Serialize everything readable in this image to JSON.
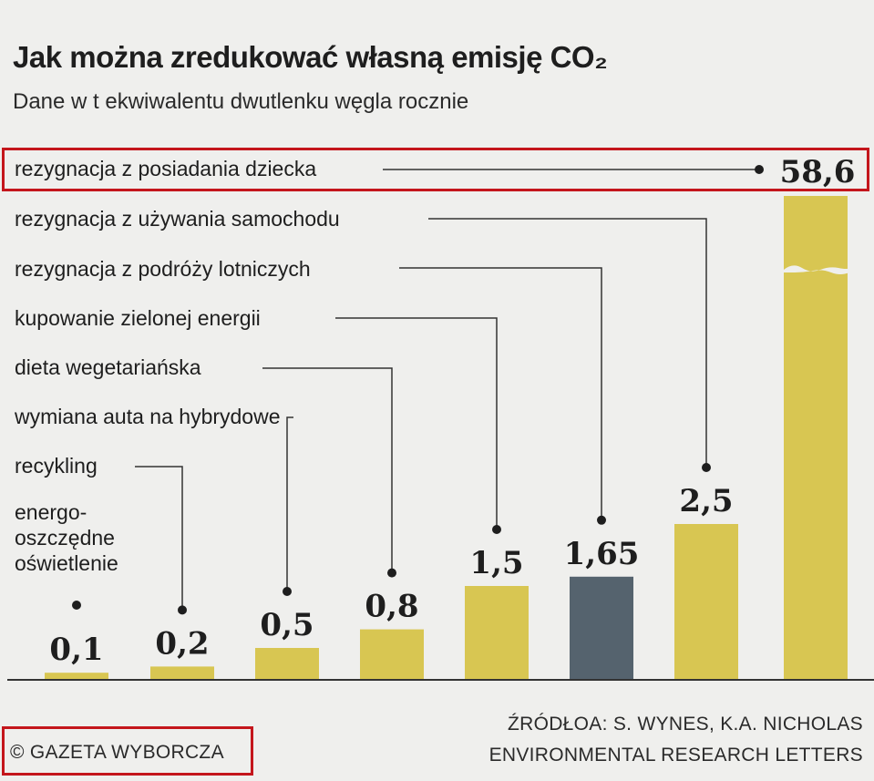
{
  "title": "Jak można zredukować własną emisję CO₂",
  "subtitle": "Dane w t ekwiwalentu dwutlenku węgla rocznie",
  "source_line1": "ŹRÓDŁOA: S. WYNES, K.A. NICHOLAS",
  "source_line2": "ENVIRONMENTAL RESEARCH LETTERS",
  "copyright": "© GAZETA WYBORCZA",
  "colors": {
    "bar": "#d8c652",
    "bar_highlight": "#55636e",
    "highlight_border": "#c4161c"
  },
  "chart_data": {
    "type": "bar",
    "title": "Jak można zredukować własną emisję CO₂",
    "subtitle": "Dane w t ekwiwalentu dwutlenku węgla rocznie",
    "categories": [
      "energo-oszczędne oświetlenie",
      "recykling",
      "wymiana auta na hybrydowe",
      "dieta wegetariańska",
      "kupowanie zielonej energii",
      "rezygnacja z podróży lotniczych",
      "rezygnacja z używania samochodu",
      "rezygnacja z posiadania dziecka"
    ],
    "labels_display": [
      "energo-\noszczędne\noświetlenie",
      "recykling",
      "wymiana auta na hybrydowe",
      "dieta wegetariańska",
      "kupowanie zielonej energii",
      "rezygnacja z podróży lotniczych",
      "rezygnacja z używania samochodu",
      "rezygnacja z posiadania dziecka"
    ],
    "values": [
      0.1,
      0.2,
      0.5,
      0.8,
      1.5,
      1.65,
      2.5,
      58.6
    ],
    "value_labels": [
      "0,1",
      "0,2",
      "0,5",
      "0,8",
      "1,5",
      "1,65",
      "2,5",
      "58,6"
    ],
    "highlighted_bar_index": 5,
    "broken_axis_bar_index": 7,
    "grid": false,
    "legend": "none"
  }
}
